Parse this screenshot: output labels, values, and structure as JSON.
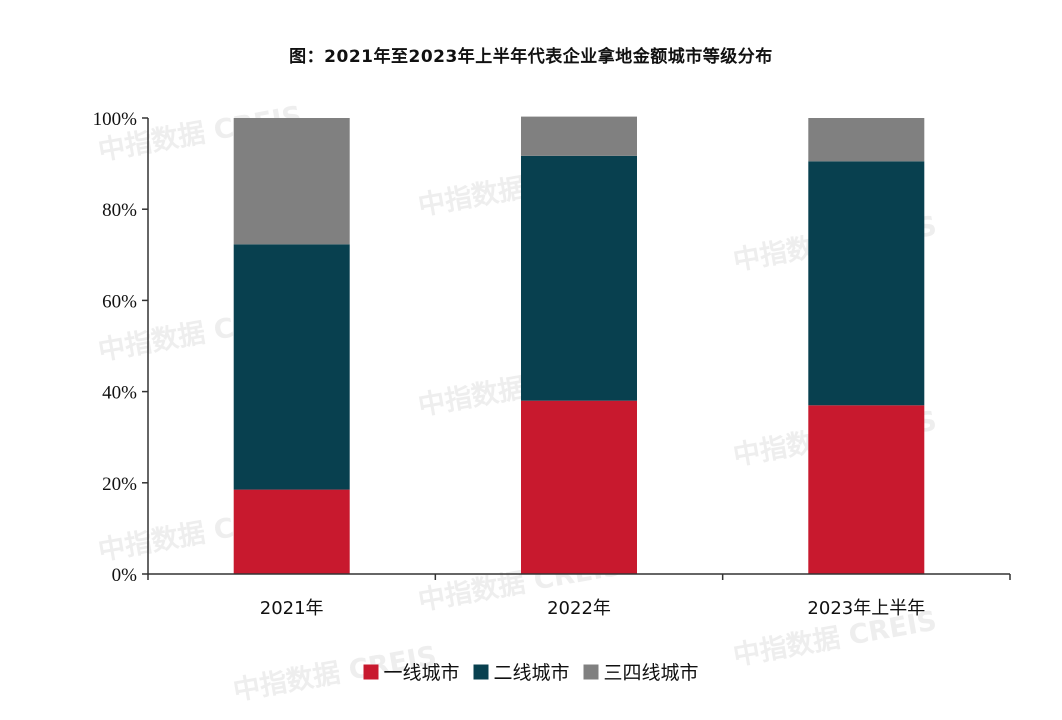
{
  "chart_data": {
    "type": "bar",
    "stacked": true,
    "title": "图：2021年至2023年上半年代表企业拿地金额城市等级分布",
    "categories": [
      "2021年",
      "2022年",
      "2023年上半年"
    ],
    "series": [
      {
        "name": "一线城市",
        "color": "#c8192e",
        "values": [
          18.5,
          38.0,
          37.0
        ]
      },
      {
        "name": "二线城市",
        "color": "#08404f",
        "values": [
          53.8,
          53.7,
          53.5
        ]
      },
      {
        "name": "三四线城市",
        "color": "#808080",
        "values": [
          27.7,
          8.6,
          9.5
        ]
      }
    ],
    "ylim": [
      0,
      100
    ],
    "yticks": [
      "0%",
      "20%",
      "40%",
      "60%",
      "80%",
      "100%"
    ],
    "legend_position": "bottom",
    "grid": false,
    "watermark": "中指数据 CREIS"
  }
}
